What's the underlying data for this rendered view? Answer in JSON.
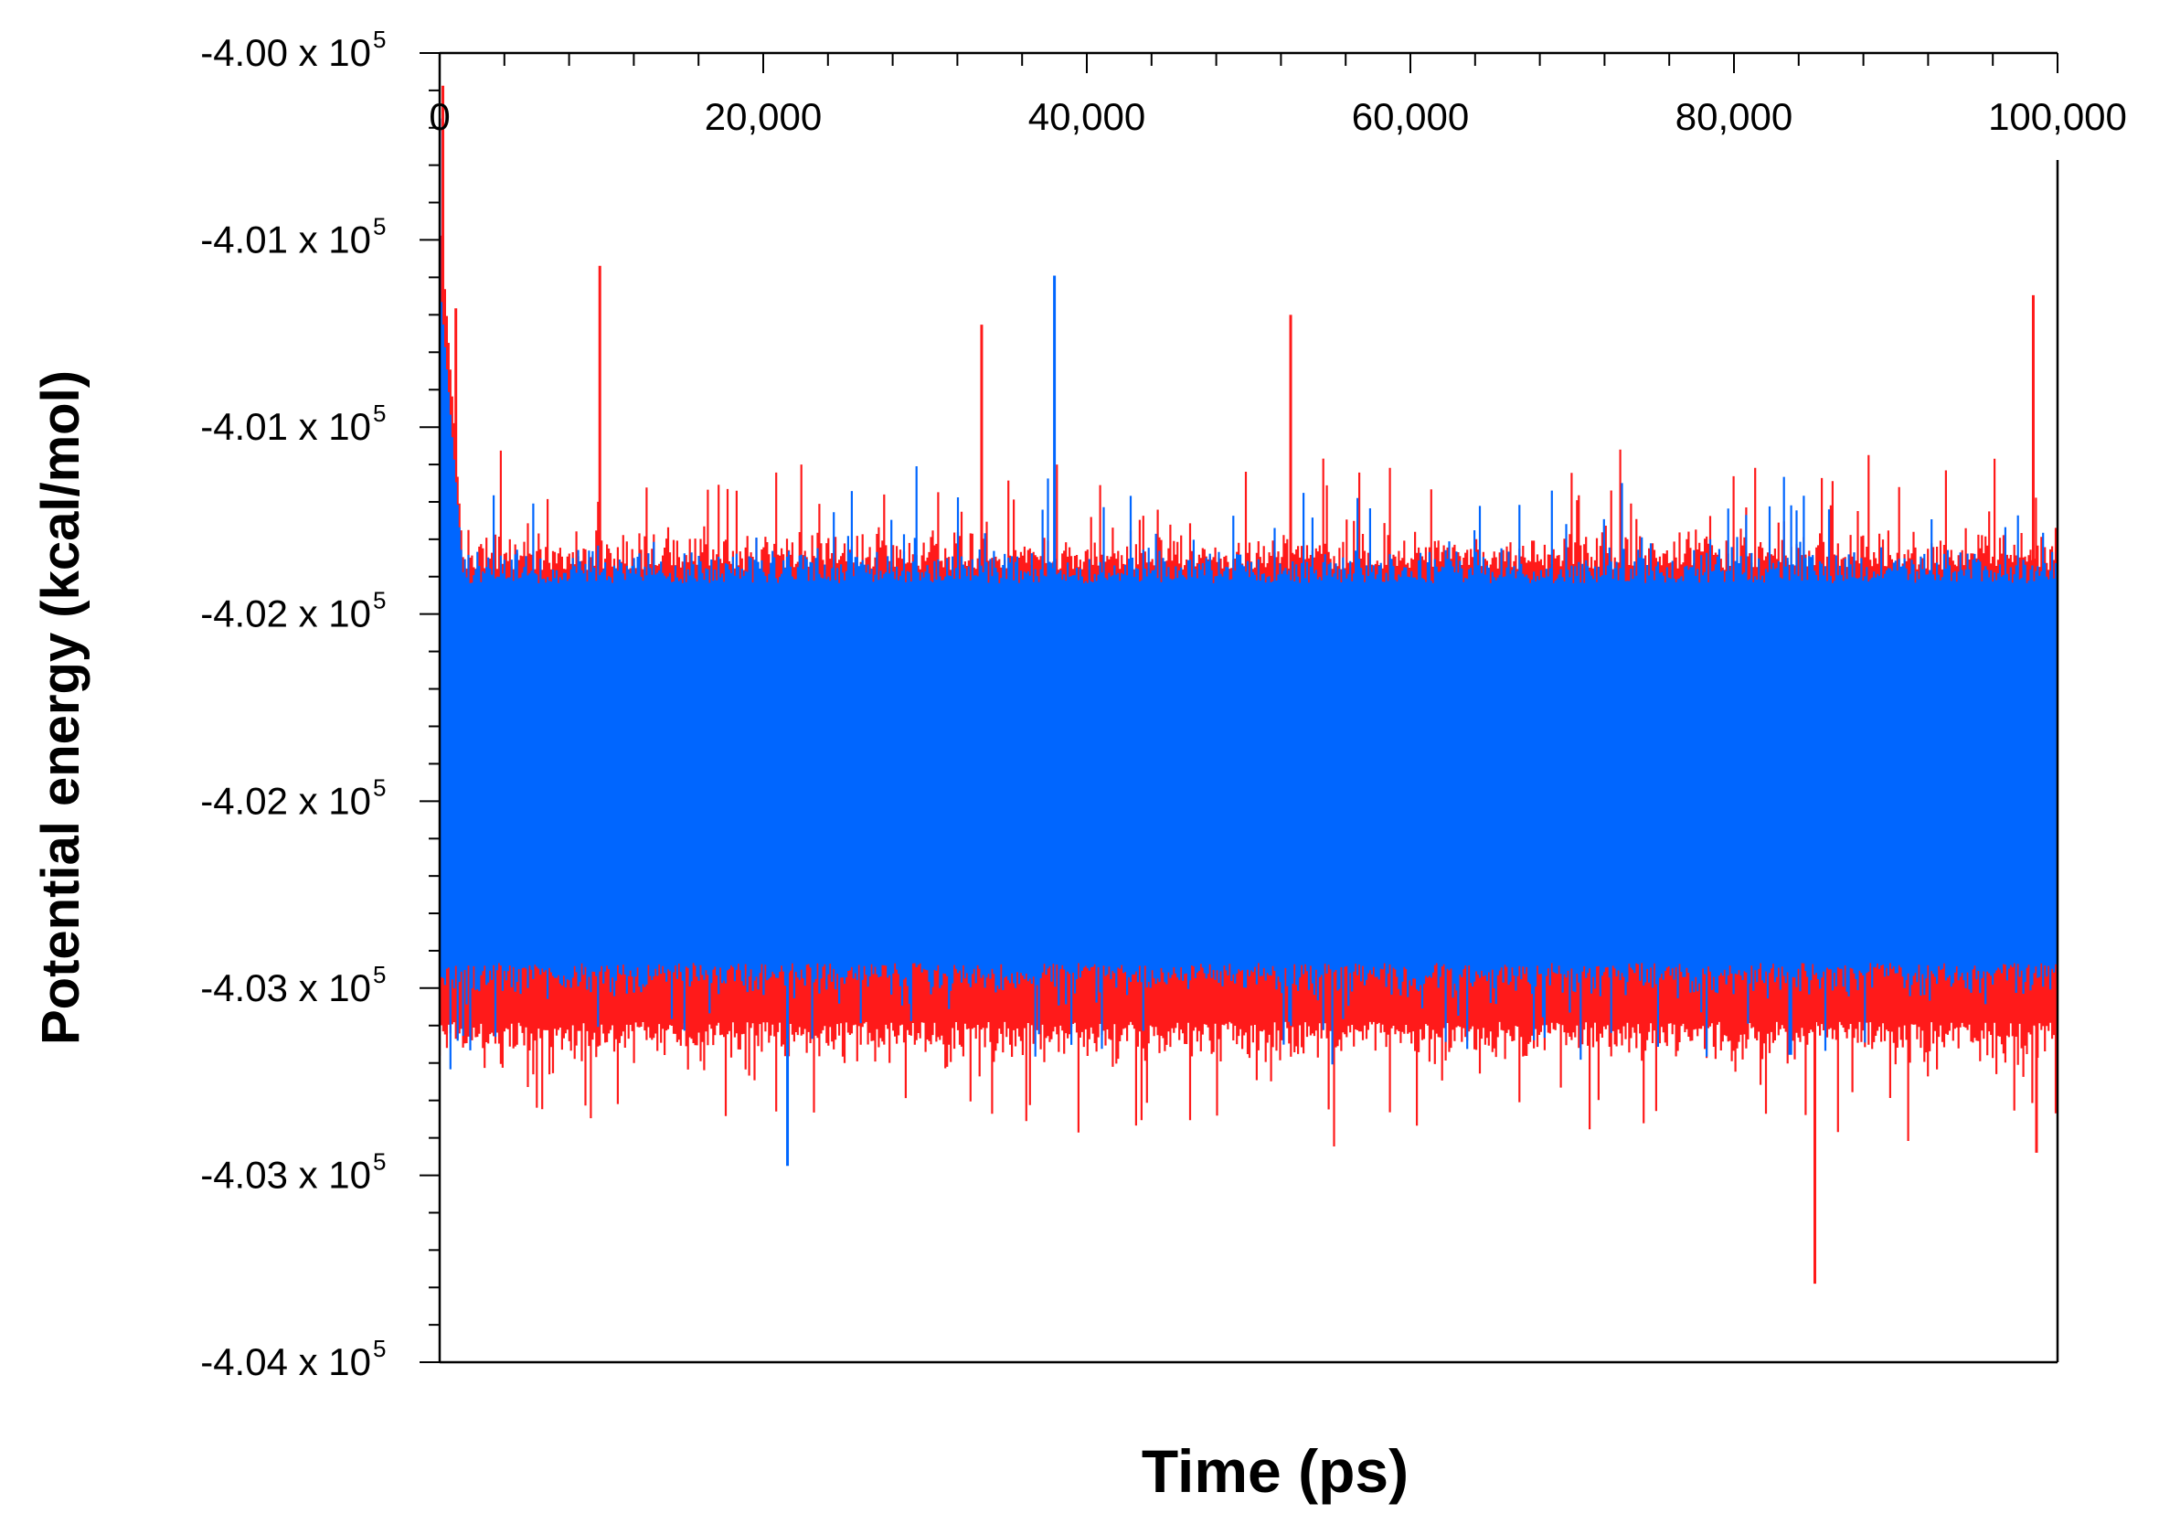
{
  "chart_data": {
    "type": "line",
    "title": "",
    "xlabel": "Time (ps)",
    "ylabel": "Potential energy (kcal/mol)",
    "xlim": [
      0,
      100000
    ],
    "ylim": [
      -404000,
      -400000
    ],
    "x_tick_values": [
      0,
      20000,
      40000,
      60000,
      80000,
      100000
    ],
    "x_tick_labels": [
      "0",
      "20,000",
      "40,000",
      "60,000",
      "80,000",
      "100,000"
    ],
    "x_minor_step": 4000,
    "y_tick_values": [
      -400000,
      -400571,
      -401143,
      -401714,
      -402286,
      -402857,
      -403429,
      -404000
    ],
    "y_tick_labels": [
      {
        "mantissa": "-4.00 x 10",
        "exp": "5"
      },
      {
        "mantissa": "-4.01 x 10",
        "exp": "5"
      },
      {
        "mantissa": "-4.01 x 10",
        "exp": "5"
      },
      {
        "mantissa": "-4.02 x 10",
        "exp": "5"
      },
      {
        "mantissa": "-4.02 x 10",
        "exp": "5"
      },
      {
        "mantissa": "-4.03 x 10",
        "exp": "5"
      },
      {
        "mantissa": "-4.03 x 10",
        "exp": "5"
      },
      {
        "mantissa": "-4.04 x 10",
        "exp": "5"
      }
    ],
    "series": [
      {
        "name": "red series",
        "color": "#ff1a1a",
        "mean": -402120,
        "band_upper": -401580,
        "band_lower": -402960,
        "spikes": [
          {
            "x": 200,
            "y": -400100
          },
          {
            "x": 1000,
            "y": -400780
          },
          {
            "x": 9900,
            "y": -400650
          },
          {
            "x": 33500,
            "y": -400830
          },
          {
            "x": 52600,
            "y": -400800
          },
          {
            "x": 85000,
            "y": -403760
          },
          {
            "x": 98500,
            "y": -400740
          },
          {
            "x": 98700,
            "y": -403360
          }
        ]
      },
      {
        "name": "blue series",
        "color": "#0066ff",
        "mean": -402080,
        "band_upper": -401620,
        "band_lower": -402780,
        "spikes": [
          {
            "x": 0,
            "y": -400200
          },
          {
            "x": 38000,
            "y": -400680
          },
          {
            "x": 21500,
            "y": -403400
          }
        ]
      }
    ]
  }
}
